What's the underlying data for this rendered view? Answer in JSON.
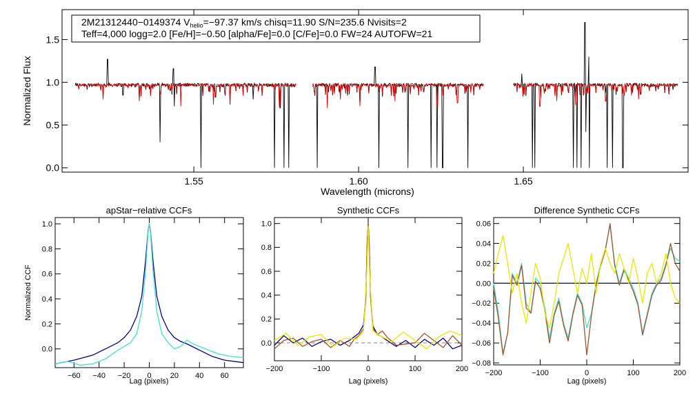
{
  "colors": {
    "black": "#000000",
    "red": "#e00000",
    "navy": "#000080",
    "cyan": "#40e0d0",
    "yellow": "#e8e800",
    "brown": "#a0522d",
    "orange": "#ff8c00",
    "gray": "#808080"
  },
  "chart_data": [
    {
      "type": "line",
      "id": "spectrum",
      "title": "",
      "xlabel": "Wavelength (microns)",
      "ylabel": "Normalized Flux",
      "xlim": [
        1.51,
        1.7
      ],
      "ylim": [
        -0.05,
        1.85
      ],
      "xticks": [
        1.55,
        1.6,
        1.65
      ],
      "xtick_labels": [
        "1.55",
        "1.60",
        "1.65"
      ],
      "yticks": [
        0.0,
        0.5,
        1.0,
        1.5
      ],
      "ytick_labels": [
        "0.0",
        "0.5",
        "1.0",
        "1.5"
      ],
      "annotation": {
        "line1_pre": "2M21312440−0149374  V",
        "line1_sub": "helio",
        "line1_post": "=−97.37 km/s  chisq=11.90  S/N=235.6  Nvisits=2",
        "line2": "Teff=4,000 logg=2.0 [Fe/H]=−0.50 [alpha/Fe]=0.0 [C/Fe]=0.0 FW=24 AUTOFW=21"
      },
      "segments": [
        [
          1.514,
          1.581
        ],
        [
          1.586,
          1.638
        ],
        [
          1.647,
          1.697
        ]
      ],
      "continuum": 0.97,
      "observed_dips": [
        [
          1.5225,
          0.82
        ],
        [
          1.5285,
          0.85
        ],
        [
          1.5335,
          0.8
        ],
        [
          1.5398,
          0.3
        ],
        [
          1.544,
          0.72
        ],
        [
          1.5522,
          0.0
        ],
        [
          1.561,
          0.74
        ],
        [
          1.568,
          0.8
        ],
        [
          1.5745,
          0.0
        ],
        [
          1.5762,
          0.7
        ],
        [
          1.5773,
          0.0
        ],
        [
          1.5788,
          0.0
        ],
        [
          1.5875,
          0.0
        ],
        [
          1.5945,
          0.82
        ],
        [
          1.6004,
          0.74
        ],
        [
          1.6062,
          0.0
        ],
        [
          1.615,
          0.0
        ],
        [
          1.622,
          0.0
        ],
        [
          1.6238,
          0.0
        ],
        [
          1.6255,
          0.0
        ],
        [
          1.6332,
          0.0
        ],
        [
          1.6528,
          0.0
        ],
        [
          1.6535,
          0.0
        ],
        [
          1.6602,
          0.8
        ],
        [
          1.6652,
          0.0
        ],
        [
          1.6662,
          0.0
        ],
        [
          1.6675,
          0.0
        ],
        [
          1.669,
          0.42
        ],
        [
          1.67,
          0.0
        ],
        [
          1.6755,
          0.0
        ],
        [
          1.677,
          0.0
        ],
        [
          1.6802,
          0.0
        ]
      ],
      "observed_peaks": [
        [
          1.5238,
          1.27
        ],
        [
          1.5438,
          1.16
        ],
        [
          1.605,
          1.18
        ],
        [
          1.6495,
          1.1
        ],
        [
          1.6687,
          1.7
        ],
        [
          1.6698,
          1.3
        ]
      ],
      "model_dips": [
        [
          1.5225,
          0.8
        ],
        [
          1.5335,
          0.78
        ],
        [
          1.546,
          0.72
        ],
        [
          1.556,
          0.74
        ],
        [
          1.561,
          0.74
        ],
        [
          1.576,
          0.72
        ],
        [
          1.5905,
          0.7
        ],
        [
          1.5945,
          0.8
        ],
        [
          1.6004,
          0.72
        ],
        [
          1.611,
          0.78
        ],
        [
          1.624,
          0.7
        ],
        [
          1.63,
          0.76
        ],
        [
          1.655,
          0.72
        ],
        [
          1.6602,
          0.78
        ],
        [
          1.666,
          0.74
        ],
        [
          1.675,
          0.78
        ],
        [
          1.685,
          0.8
        ]
      ]
    },
    {
      "type": "line",
      "id": "apstar-ccf",
      "title": "apStar−relative CCFs",
      "xlabel": "Lag (pixels)",
      "ylabel": "Normalized CCF",
      "xlim": [
        -75,
        75
      ],
      "ylim": [
        -0.15,
        1.05
      ],
      "xticks": [
        -60,
        -40,
        -20,
        0,
        20,
        40,
        60
      ],
      "xtick_labels": [
        "−60",
        "−40",
        "−20",
        "0",
        "20",
        "40",
        "60"
      ],
      "yticks": [
        0.0,
        0.2,
        0.4,
        0.6,
        0.8,
        1.0
      ],
      "ytick_labels": [
        "0.0",
        "0.2",
        "0.4",
        "0.6",
        "0.8",
        "1.0"
      ],
      "series": [
        {
          "color": "#000080",
          "x": [
            -75,
            -60,
            -45,
            -35,
            -25,
            -20,
            -15,
            -10,
            -6,
            -3,
            -1,
            0,
            1,
            3,
            6,
            10,
            15,
            20,
            25,
            30,
            40,
            50,
            60,
            75
          ],
          "y": [
            -0.12,
            -0.09,
            -0.05,
            0.0,
            0.05,
            0.09,
            0.15,
            0.26,
            0.42,
            0.7,
            0.94,
            1.0,
            0.94,
            0.7,
            0.42,
            0.26,
            0.15,
            0.09,
            0.06,
            0.04,
            -0.01,
            -0.06,
            -0.09,
            -0.11
          ]
        },
        {
          "color": "#40e0d0",
          "x": [
            -75,
            -65,
            -55,
            -45,
            -35,
            -25,
            -15,
            -10,
            -6,
            -3,
            -1,
            0,
            1,
            3,
            6,
            10,
            15,
            20,
            25,
            30,
            35,
            45,
            55,
            65,
            75
          ],
          "y": [
            -0.12,
            -0.1,
            -0.13,
            -0.12,
            -0.08,
            -0.01,
            0.05,
            0.12,
            0.3,
            0.62,
            0.93,
            1.0,
            0.93,
            0.62,
            0.3,
            0.12,
            0.05,
            0.0,
            0.02,
            0.07,
            0.04,
            0.0,
            -0.04,
            -0.06,
            -0.07
          ]
        }
      ]
    },
    {
      "type": "line",
      "id": "synthetic-ccf",
      "title": "Synthetic CCFs",
      "xlabel": "Lag (pixels)",
      "ylabel": "",
      "xlim": [
        -200,
        200
      ],
      "ylim": [
        -0.15,
        1.05
      ],
      "xticks": [
        -200,
        -100,
        0,
        100,
        200
      ],
      "xtick_labels": [
        "−200",
        "−100",
        "0",
        "100",
        "200"
      ],
      "yticks": [
        0.0,
        0.2,
        0.4,
        0.6,
        0.8,
        1.0
      ],
      "ytick_labels": [
        "0.0",
        "0.2",
        "0.4",
        "0.6",
        "0.8",
        "1.0"
      ],
      "zero_line": 0.0,
      "series": [
        {
          "color": "#000080",
          "x": [
            -200,
            -180,
            -160,
            -140,
            -120,
            -100,
            -80,
            -60,
            -40,
            -30,
            -20,
            -10,
            -5,
            -2,
            0,
            2,
            5,
            10,
            20,
            30,
            40,
            60,
            80,
            100,
            120,
            140,
            160,
            180,
            200
          ],
          "y": [
            -0.02,
            0.06,
            0.0,
            0.04,
            -0.03,
            0.01,
            0.03,
            -0.02,
            0.02,
            0.05,
            0.08,
            0.15,
            0.4,
            0.85,
            1.0,
            0.85,
            0.4,
            0.14,
            0.07,
            0.05,
            0.02,
            -0.03,
            0.02,
            -0.04,
            0.03,
            -0.02,
            0.04,
            -0.05,
            -0.02
          ]
        },
        {
          "color": "#a0522d",
          "x": [
            -200,
            -180,
            -160,
            -140,
            -120,
            -100,
            -80,
            -60,
            -40,
            -30,
            -20,
            -10,
            -5,
            -2,
            0,
            2,
            5,
            10,
            20,
            30,
            40,
            60,
            80,
            100,
            120,
            140,
            160,
            180,
            200
          ],
          "y": [
            -0.05,
            0.02,
            0.04,
            -0.03,
            0.01,
            0.03,
            -0.04,
            0.02,
            -0.03,
            0.03,
            0.06,
            0.12,
            0.38,
            0.85,
            1.0,
            0.85,
            0.38,
            0.12,
            0.07,
            0.1,
            0.05,
            -0.02,
            -0.01,
            0.0,
            0.08,
            0.02,
            -0.04,
            0.06,
            -0.02
          ]
        },
        {
          "color": "#e8e800",
          "x": [
            -200,
            -175,
            -150,
            -125,
            -100,
            -75,
            -50,
            -25,
            -10,
            -3,
            0,
            3,
            10,
            25,
            50,
            75,
            100,
            125,
            150,
            175,
            200
          ],
          "y": [
            0.02,
            0.08,
            -0.02,
            0.05,
            0.07,
            -0.03,
            0.04,
            0.03,
            0.1,
            0.6,
            0.98,
            0.6,
            0.1,
            0.06,
            0.01,
            0.09,
            0.02,
            -0.05,
            0.05,
            0.1,
            0.06
          ]
        }
      ]
    },
    {
      "type": "line",
      "id": "difference-ccf",
      "title": "Difference Synthetic CCFs",
      "xlabel": "Lag (pixels)",
      "ylabel": "",
      "xlim": [
        -200,
        200
      ],
      "ylim": [
        -0.082,
        0.066
      ],
      "xticks": [
        -200,
        -100,
        0,
        100,
        200
      ],
      "xtick_labels": [
        "−200",
        "−100",
        "0",
        "100",
        "200"
      ],
      "yticks": [
        -0.08,
        -0.06,
        -0.04,
        -0.02,
        0.0,
        0.02,
        0.04,
        0.06
      ],
      "ytick_labels": [
        "−0.08",
        "−0.06",
        "−0.04",
        "−0.02",
        "0.00",
        "0.02",
        "0.04",
        "0.06"
      ],
      "series": [
        {
          "color": "#000080",
          "x": [
            -200,
            200
          ],
          "y": [
            0.0,
            0.0
          ]
        },
        {
          "color": "#40e0d0",
          "x": [
            -200,
            -190,
            -180,
            -170,
            -160,
            -150,
            -140,
            -130,
            -120,
            -110,
            -100,
            -90,
            -80,
            -70,
            -60,
            -50,
            -40,
            -30,
            -20,
            -10,
            0,
            10,
            20,
            30,
            40,
            50,
            60,
            70,
            80,
            90,
            100,
            110,
            120,
            130,
            140,
            150,
            160,
            170,
            180,
            190,
            200
          ],
          "y": [
            0.0,
            -0.03,
            -0.07,
            -0.05,
            0.01,
            0.0,
            0.02,
            -0.02,
            -0.03,
            0.005,
            0.0,
            -0.025,
            -0.055,
            -0.03,
            -0.015,
            -0.04,
            -0.055,
            -0.03,
            -0.01,
            -0.02,
            -0.045,
            -0.03,
            0.0,
            0.02,
            0.035,
            0.058,
            0.02,
            0.0,
            0.015,
            0.005,
            -0.005,
            -0.02,
            -0.05,
            -0.03,
            -0.01,
            0.0,
            0.005,
            0.02,
            0.035,
            0.025,
            0.022
          ]
        },
        {
          "color": "#a0522d",
          "x": [
            -200,
            -190,
            -180,
            -170,
            -160,
            -150,
            -140,
            -130,
            -120,
            -110,
            -100,
            -90,
            -80,
            -70,
            -60,
            -50,
            -40,
            -30,
            -20,
            -10,
            0,
            10,
            20,
            30,
            40,
            50,
            60,
            70,
            80,
            90,
            100,
            110,
            120,
            130,
            140,
            150,
            160,
            170,
            180,
            190,
            200
          ],
          "y": [
            -0.005,
            -0.035,
            -0.072,
            -0.05,
            0.008,
            -0.002,
            0.018,
            -0.025,
            -0.03,
            0.002,
            -0.005,
            -0.028,
            -0.06,
            -0.032,
            -0.018,
            -0.042,
            -0.058,
            -0.032,
            -0.012,
            -0.022,
            -0.072,
            -0.032,
            -0.002,
            0.018,
            0.033,
            0.06,
            0.018,
            -0.002,
            0.013,
            0.003,
            -0.008,
            -0.022,
            -0.052,
            -0.032,
            -0.012,
            -0.002,
            0.003,
            0.018,
            0.04,
            0.02,
            0.012
          ]
        },
        {
          "color": "#e8e800",
          "x": [
            -200,
            -190,
            -180,
            -170,
            -160,
            -150,
            -140,
            -130,
            -120,
            -110,
            -100,
            -90,
            -80,
            -70,
            -60,
            -50,
            -40,
            -30,
            -20,
            -10,
            0,
            10,
            20,
            30,
            40,
            50,
            60,
            70,
            80,
            90,
            100,
            110,
            120,
            130,
            140,
            150,
            160,
            170,
            180,
            190,
            200
          ],
          "y": [
            0.01,
            0.03,
            0.048,
            0.02,
            -0.01,
            0.01,
            -0.02,
            -0.04,
            -0.01,
            0.02,
            0.005,
            -0.03,
            -0.045,
            -0.02,
            0.01,
            0.025,
            0.04,
            0.015,
            -0.01,
            0.015,
            0.0,
            0.03,
            -0.01,
            0.02,
            0.035,
            0.02,
            0.01,
            0.03,
            0.015,
            0.0,
            0.025,
            0.005,
            -0.02,
            0.01,
            0.02,
            0.0,
            0.01,
            0.03,
            0.0,
            -0.015,
            -0.02
          ]
        }
      ]
    }
  ]
}
